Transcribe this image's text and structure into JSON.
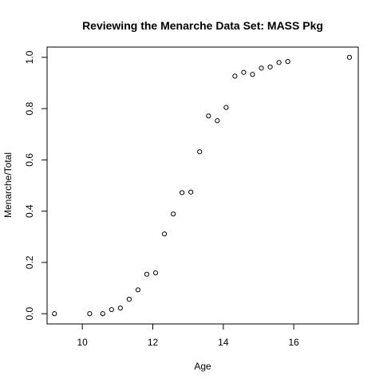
{
  "chart_data": {
    "type": "scatter",
    "title": "Reviewing the Menarche Data Set: MASS Pkg",
    "xlabel": "Age",
    "ylabel": "Menarche/Total",
    "xlim": [
      9.0,
      17.83
    ],
    "ylim": [
      -0.04,
      1.04
    ],
    "xticks": [
      10,
      12,
      14,
      16
    ],
    "xtick_labels": [
      "10",
      "12",
      "14",
      "16"
    ],
    "yticks": [
      0.0,
      0.2,
      0.4,
      0.6,
      0.8,
      1.0
    ],
    "ytick_labels": [
      "0.0",
      "0.2",
      "0.4",
      "0.6",
      "0.8",
      "1.0"
    ],
    "grid": false,
    "legend": "none",
    "series": [
      {
        "marker": "open-circle",
        "x": [
          9.21,
          10.21,
          10.58,
          10.83,
          11.08,
          11.33,
          11.58,
          11.83,
          12.08,
          12.33,
          12.58,
          12.83,
          13.08,
          13.33,
          13.58,
          13.83,
          14.08,
          14.33,
          14.58,
          14.83,
          15.08,
          15.33,
          15.58,
          15.83,
          17.58
        ],
        "y": [
          0.0,
          0.0,
          0.0,
          0.0159,
          0.0221,
          0.0566,
          0.0929,
          0.1538,
          0.1591,
          0.3111,
          0.3889,
          0.4722,
          0.4744,
          0.6316,
          0.7714,
          0.7528,
          0.8045,
          0.9268,
          0.9412,
          0.9333,
          0.958,
          0.9623,
          0.9798,
          0.9836,
          1.0
        ]
      }
    ]
  }
}
